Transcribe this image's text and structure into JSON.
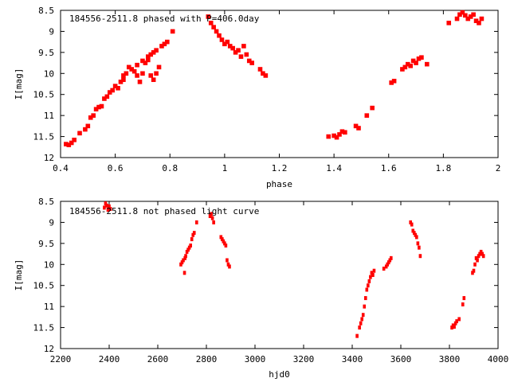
{
  "chart_data": [
    {
      "type": "scatter",
      "title": "184556-2511.8 phased with P=406.0day",
      "xlabel": "phase",
      "ylabel": "I[mag]",
      "xlim": [
        0.4,
        2.0
      ],
      "ylim": [
        8.5,
        12.0
      ],
      "y_inverted": true,
      "xticks": [
        "0.4",
        "0.6",
        "0.8",
        "1",
        "1.2",
        "1.4",
        "1.6",
        "1.8",
        "2"
      ],
      "yticks": [
        "8.5",
        "9",
        "9.5",
        "10",
        "10.5",
        "11",
        "11.5",
        "12"
      ],
      "marker_color": "#ff0000",
      "points": [
        [
          0.42,
          11.68
        ],
        [
          0.43,
          11.7
        ],
        [
          0.44,
          11.65
        ],
        [
          0.45,
          11.58
        ],
        [
          0.47,
          11.42
        ],
        [
          0.49,
          11.33
        ],
        [
          0.5,
          11.25
        ],
        [
          0.51,
          11.05
        ],
        [
          0.52,
          11.0
        ],
        [
          0.53,
          10.85
        ],
        [
          0.54,
          10.8
        ],
        [
          0.55,
          10.78
        ],
        [
          0.56,
          10.6
        ],
        [
          0.57,
          10.55
        ],
        [
          0.58,
          10.45
        ],
        [
          0.59,
          10.4
        ],
        [
          0.6,
          10.3
        ],
        [
          0.61,
          10.35
        ],
        [
          0.62,
          10.2
        ],
        [
          0.63,
          10.05
        ],
        [
          0.63,
          10.15
        ],
        [
          0.64,
          10.0
        ],
        [
          0.65,
          9.85
        ],
        [
          0.66,
          9.9
        ],
        [
          0.67,
          9.95
        ],
        [
          0.68,
          9.8
        ],
        [
          0.68,
          10.05
        ],
        [
          0.69,
          10.2
        ],
        [
          0.7,
          9.7
        ],
        [
          0.7,
          10.0
        ],
        [
          0.71,
          9.75
        ],
        [
          0.72,
          9.6
        ],
        [
          0.72,
          9.68
        ],
        [
          0.73,
          9.55
        ],
        [
          0.74,
          9.5
        ],
        [
          0.75,
          9.45
        ],
        [
          0.73,
          10.05
        ],
        [
          0.74,
          10.15
        ],
        [
          0.75,
          10.0
        ],
        [
          0.76,
          9.85
        ],
        [
          0.77,
          9.35
        ],
        [
          0.78,
          9.3
        ],
        [
          0.79,
          9.25
        ],
        [
          0.81,
          9.0
        ],
        [
          0.94,
          8.65
        ],
        [
          0.95,
          8.8
        ],
        [
          0.96,
          8.9
        ],
        [
          0.97,
          9.0
        ],
        [
          0.98,
          9.1
        ],
        [
          0.99,
          9.2
        ],
        [
          1.0,
          9.3
        ],
        [
          1.01,
          9.25
        ],
        [
          1.02,
          9.35
        ],
        [
          1.03,
          9.4
        ],
        [
          1.04,
          9.5
        ],
        [
          1.05,
          9.45
        ],
        [
          1.06,
          9.6
        ],
        [
          1.07,
          9.35
        ],
        [
          1.08,
          9.55
        ],
        [
          1.09,
          9.7
        ],
        [
          1.1,
          9.75
        ],
        [
          1.13,
          9.9
        ],
        [
          1.14,
          10.0
        ],
        [
          1.15,
          10.05
        ],
        [
          1.38,
          11.5
        ],
        [
          1.4,
          11.48
        ],
        [
          1.41,
          11.52
        ],
        [
          1.42,
          11.45
        ],
        [
          1.43,
          11.38
        ],
        [
          1.44,
          11.4
        ],
        [
          1.48,
          11.25
        ],
        [
          1.49,
          11.3
        ],
        [
          1.52,
          11.0
        ],
        [
          1.54,
          10.82
        ],
        [
          1.61,
          10.22
        ],
        [
          1.62,
          10.18
        ],
        [
          1.65,
          9.9
        ],
        [
          1.66,
          9.85
        ],
        [
          1.67,
          9.78
        ],
        [
          1.68,
          9.82
        ],
        [
          1.69,
          9.7
        ],
        [
          1.7,
          9.75
        ],
        [
          1.71,
          9.65
        ],
        [
          1.72,
          9.62
        ],
        [
          1.74,
          9.78
        ],
        [
          1.82,
          8.8
        ],
        [
          1.85,
          8.7
        ],
        [
          1.86,
          8.6
        ],
        [
          1.87,
          8.55
        ],
        [
          1.88,
          8.62
        ],
        [
          1.89,
          8.7
        ],
        [
          1.9,
          8.65
        ],
        [
          1.91,
          8.6
        ],
        [
          1.92,
          8.75
        ],
        [
          1.93,
          8.8
        ],
        [
          1.94,
          8.7
        ]
      ]
    },
    {
      "type": "scatter",
      "title": "184556-2511.8 not phased light curve",
      "xlabel": "hjd0",
      "ylabel": "I[mag]",
      "xlim": [
        2200,
        4000
      ],
      "ylim": [
        8.5,
        12.0
      ],
      "y_inverted": true,
      "xticks": [
        "2200",
        "2400",
        "2600",
        "2800",
        "3000",
        "3200",
        "3400",
        "3600",
        "3800",
        "4000"
      ],
      "yticks": [
        "8.5",
        "9",
        "9.5",
        "10",
        "10.5",
        "11",
        "11.5",
        "12"
      ],
      "marker_color": "#ff0000",
      "points": [
        [
          2380,
          8.65
        ],
        [
          2385,
          8.55
        ],
        [
          2390,
          8.6
        ],
        [
          2395,
          8.7
        ],
        [
          2400,
          8.62
        ],
        [
          2405,
          8.68
        ],
        [
          2695,
          10.0
        ],
        [
          2700,
          9.95
        ],
        [
          2705,
          9.9
        ],
        [
          2710,
          10.2
        ],
        [
          2712,
          9.85
        ],
        [
          2715,
          9.8
        ],
        [
          2720,
          9.7
        ],
        [
          2725,
          9.65
        ],
        [
          2730,
          9.6
        ],
        [
          2735,
          9.55
        ],
        [
          2740,
          9.4
        ],
        [
          2745,
          9.3
        ],
        [
          2750,
          9.25
        ],
        [
          2760,
          9.0
        ],
        [
          2815,
          8.85
        ],
        [
          2820,
          8.8
        ],
        [
          2825,
          8.9
        ],
        [
          2830,
          9.0
        ],
        [
          2860,
          9.35
        ],
        [
          2865,
          9.4
        ],
        [
          2870,
          9.45
        ],
        [
          2875,
          9.5
        ],
        [
          2880,
          9.55
        ],
        [
          2885,
          9.9
        ],
        [
          2890,
          10.0
        ],
        [
          2895,
          10.05
        ],
        [
          3420,
          11.7
        ],
        [
          3430,
          11.5
        ],
        [
          3435,
          11.4
        ],
        [
          3440,
          11.3
        ],
        [
          3445,
          11.2
        ],
        [
          3450,
          11.0
        ],
        [
          3455,
          10.8
        ],
        [
          3460,
          10.6
        ],
        [
          3465,
          10.5
        ],
        [
          3470,
          10.4
        ],
        [
          3475,
          10.3
        ],
        [
          3480,
          10.2
        ],
        [
          3485,
          10.25
        ],
        [
          3490,
          10.15
        ],
        [
          3530,
          10.1
        ],
        [
          3540,
          10.05
        ],
        [
          3545,
          10.0
        ],
        [
          3550,
          9.95
        ],
        [
          3555,
          9.9
        ],
        [
          3560,
          9.85
        ],
        [
          3640,
          9.0
        ],
        [
          3645,
          9.05
        ],
        [
          3650,
          9.2
        ],
        [
          3655,
          9.25
        ],
        [
          3660,
          9.3
        ],
        [
          3665,
          9.35
        ],
        [
          3670,
          9.5
        ],
        [
          3675,
          9.6
        ],
        [
          3680,
          9.8
        ],
        [
          3810,
          11.5
        ],
        [
          3815,
          11.45
        ],
        [
          3820,
          11.48
        ],
        [
          3825,
          11.4
        ],
        [
          3830,
          11.35
        ],
        [
          3840,
          11.3
        ],
        [
          3855,
          10.95
        ],
        [
          3860,
          10.8
        ],
        [
          3895,
          10.2
        ],
        [
          3900,
          10.15
        ],
        [
          3905,
          10.0
        ],
        [
          3910,
          9.85
        ],
        [
          3915,
          9.9
        ],
        [
          3920,
          9.8
        ],
        [
          3925,
          9.75
        ],
        [
          3930,
          9.7
        ],
        [
          3935,
          9.75
        ],
        [
          3940,
          9.8
        ]
      ]
    }
  ]
}
